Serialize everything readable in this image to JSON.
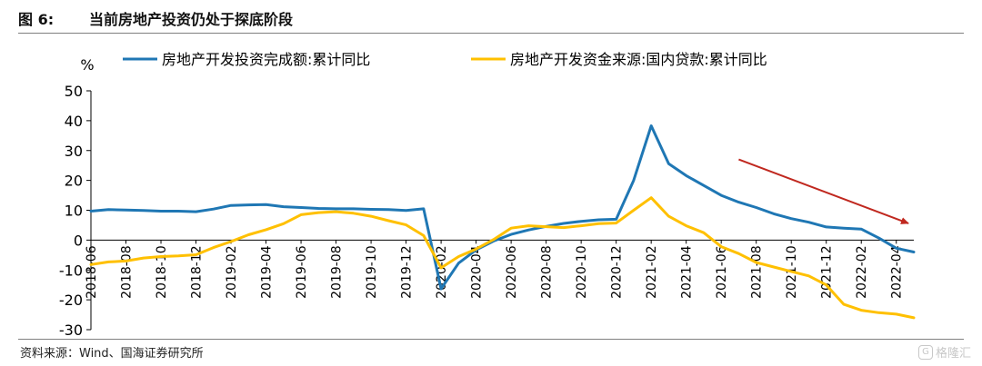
{
  "figure": {
    "number": "图 6:",
    "title": "当前房地产投资仍处于探底阶段",
    "source": "资料来源：Wind、国海证券研究所",
    "watermark": "格隆汇",
    "watermark_icon": "G"
  },
  "chart_data": {
    "type": "line",
    "yunit": "%",
    "ylim": [
      -30,
      50
    ],
    "yticks": [
      50,
      40,
      30,
      20,
      10,
      0,
      -10,
      -20,
      -30
    ],
    "xlim": [
      "2018-06",
      "2022-05"
    ],
    "xticks": [
      "2018-06",
      "2018-08",
      "2018-10",
      "2018-12",
      "2019-02",
      "2019-04",
      "2019-06",
      "2019-08",
      "2019-10",
      "2019-12",
      "2020-02",
      "2020-04",
      "2020-06",
      "2020-08",
      "2020-10",
      "2020-12",
      "2021-02",
      "2021-04",
      "2021-06",
      "2021-08",
      "2021-10",
      "2021-12",
      "2022-02",
      "2022-04"
    ],
    "legend_position": "top",
    "annotation": "downward trend arrow",
    "series": [
      {
        "name": "房地产开发投资完成额:累计同比",
        "color": "#1f77b4",
        "points": [
          [
            "2018-06",
            9.7
          ],
          [
            "2018-07",
            10.2
          ],
          [
            "2018-08",
            10.1
          ],
          [
            "2018-09",
            9.9
          ],
          [
            "2018-10",
            9.7
          ],
          [
            "2018-11",
            9.7
          ],
          [
            "2018-12",
            9.5
          ],
          [
            "2019-01",
            10.4
          ],
          [
            "2019-02",
            11.6
          ],
          [
            "2019-03",
            11.8
          ],
          [
            "2019-04",
            11.9
          ],
          [
            "2019-05",
            11.2
          ],
          [
            "2019-06",
            10.9
          ],
          [
            "2019-07",
            10.6
          ],
          [
            "2019-08",
            10.5
          ],
          [
            "2019-09",
            10.5
          ],
          [
            "2019-10",
            10.3
          ],
          [
            "2019-11",
            10.2
          ],
          [
            "2019-12",
            9.9
          ],
          [
            "2020-01",
            10.5
          ],
          [
            "2020-02",
            -16.3
          ],
          [
            "2020-03",
            -7.7
          ],
          [
            "2020-04",
            -3.3
          ],
          [
            "2020-05",
            -0.3
          ],
          [
            "2020-06",
            1.9
          ],
          [
            "2020-07",
            3.4
          ],
          [
            "2020-08",
            4.6
          ],
          [
            "2020-09",
            5.6
          ],
          [
            "2020-10",
            6.3
          ],
          [
            "2020-11",
            6.8
          ],
          [
            "2020-12",
            7.0
          ],
          [
            "2021-01",
            20.0
          ],
          [
            "2021-02",
            38.3
          ],
          [
            "2021-03",
            25.6
          ],
          [
            "2021-04",
            21.6
          ],
          [
            "2021-05",
            18.3
          ],
          [
            "2021-06",
            15.0
          ],
          [
            "2021-07",
            12.7
          ],
          [
            "2021-08",
            10.9
          ],
          [
            "2021-09",
            8.8
          ],
          [
            "2021-10",
            7.2
          ],
          [
            "2021-11",
            6.0
          ],
          [
            "2021-12",
            4.4
          ],
          [
            "2022-01",
            4.0
          ],
          [
            "2022-02",
            3.7
          ],
          [
            "2022-03",
            0.7
          ],
          [
            "2022-04",
            -2.7
          ],
          [
            "2022-05",
            -4.0
          ]
        ]
      },
      {
        "name": "房地产开发资金来源:国内贷款:累计同比",
        "color": "#ffc000",
        "points": [
          [
            "2018-06",
            -8.2
          ],
          [
            "2018-07",
            -7.3
          ],
          [
            "2018-08",
            -7.0
          ],
          [
            "2018-09",
            -6.0
          ],
          [
            "2018-10",
            -5.5
          ],
          [
            "2018-11",
            -5.3
          ],
          [
            "2018-12",
            -4.9
          ],
          [
            "2019-01",
            -2.5
          ],
          [
            "2019-02",
            -0.5
          ],
          [
            "2019-03",
            1.8
          ],
          [
            "2019-04",
            3.5
          ],
          [
            "2019-05",
            5.5
          ],
          [
            "2019-06",
            8.5
          ],
          [
            "2019-07",
            9.2
          ],
          [
            "2019-08",
            9.5
          ],
          [
            "2019-09",
            9.0
          ],
          [
            "2019-10",
            8.0
          ],
          [
            "2019-11",
            6.5
          ],
          [
            "2019-12",
            5.1
          ],
          [
            "2020-01",
            1.5
          ],
          [
            "2020-02",
            -9.3
          ],
          [
            "2020-03",
            -5.5
          ],
          [
            "2020-04",
            -3.0
          ],
          [
            "2020-05",
            0.2
          ],
          [
            "2020-06",
            4.0
          ],
          [
            "2020-07",
            4.8
          ],
          [
            "2020-08",
            4.5
          ],
          [
            "2020-09",
            4.2
          ],
          [
            "2020-10",
            4.8
          ],
          [
            "2020-11",
            5.5
          ],
          [
            "2020-12",
            5.7
          ],
          [
            "2021-01",
            10.0
          ],
          [
            "2021-02",
            14.2
          ],
          [
            "2021-03",
            8.0
          ],
          [
            "2021-04",
            4.8
          ],
          [
            "2021-05",
            2.5
          ],
          [
            "2021-06",
            -2.2
          ],
          [
            "2021-07",
            -4.5
          ],
          [
            "2021-08",
            -7.5
          ],
          [
            "2021-09",
            -9.0
          ],
          [
            "2021-10",
            -10.5
          ],
          [
            "2021-11",
            -12.0
          ],
          [
            "2021-12",
            -15.0
          ],
          [
            "2022-01",
            -21.5
          ],
          [
            "2022-02",
            -23.5
          ],
          [
            "2022-03",
            -24.3
          ],
          [
            "2022-04",
            -24.8
          ],
          [
            "2022-05",
            -26.0
          ]
        ]
      }
    ],
    "arrow": {
      "color": "#c0281f",
      "from": [
        "2021-07",
        27.0
      ],
      "to": [
        "2022-05",
        5.0
      ]
    }
  }
}
